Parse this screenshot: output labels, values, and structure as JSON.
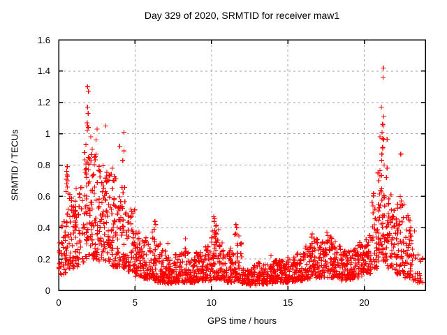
{
  "chart_data": {
    "type": "scatter",
    "title": "Day 329 of 2020, SRMTID for receiver maw1",
    "xlabel": "GPS time / hours",
    "ylabel": "SRMTID / TECUs",
    "xlim": [
      0,
      24
    ],
    "ylim": [
      0,
      1.6
    ],
    "xticks": {
      "values": [
        0,
        5,
        10,
        15,
        20
      ],
      "labels": [
        "0",
        "5",
        "10",
        "15",
        "20"
      ]
    },
    "yticks": {
      "values": [
        0,
        0.2,
        0.4,
        0.6,
        0.8,
        1.0,
        1.2,
        1.4,
        1.6
      ],
      "labels": [
        "0",
        "0.2",
        "0.4",
        "0.6",
        "0.8",
        "1",
        "1.2",
        "1.4",
        "1.6"
      ]
    },
    "grid": true,
    "legend": "none",
    "marker": {
      "shape": "plus",
      "color": "#ff0000",
      "size": 7,
      "stroke_width": 1.2
    },
    "colors": {
      "background": "#ffffff",
      "border": "#000000",
      "grid": "#a0a0a0",
      "text": "#000000"
    },
    "render_seed": 329,
    "series": [
      {
        "name": "SRMTID",
        "band_profile_format": [
          "t_start_hr",
          "t_end_hr",
          "n_points",
          "value_min",
          "value_max",
          "low_bias_exponent"
        ],
        "band_profile": [
          [
            0.0,
            0.5,
            42,
            0.1,
            0.45,
            1.5
          ],
          [
            0.5,
            1.0,
            46,
            0.14,
            0.62,
            1.5
          ],
          [
            1.0,
            1.5,
            46,
            0.15,
            0.68,
            1.4
          ],
          [
            1.5,
            2.0,
            50,
            0.18,
            0.86,
            1.25
          ],
          [
            2.0,
            2.5,
            52,
            0.2,
            0.88,
            1.25
          ],
          [
            2.5,
            3.0,
            50,
            0.18,
            0.8,
            1.3
          ],
          [
            3.0,
            3.5,
            50,
            0.18,
            0.78,
            1.3
          ],
          [
            3.5,
            4.0,
            50,
            0.15,
            0.74,
            1.35
          ],
          [
            4.0,
            4.5,
            48,
            0.14,
            0.66,
            1.4
          ],
          [
            4.5,
            5.0,
            46,
            0.12,
            0.52,
            1.5
          ],
          [
            5.0,
            5.5,
            44,
            0.09,
            0.4,
            1.6
          ],
          [
            5.5,
            6.0,
            44,
            0.07,
            0.34,
            1.6
          ],
          [
            6.0,
            6.5,
            44,
            0.06,
            0.38,
            1.7
          ],
          [
            6.5,
            7.0,
            44,
            0.05,
            0.3,
            1.7
          ],
          [
            7.0,
            7.5,
            44,
            0.04,
            0.22,
            1.6
          ],
          [
            7.5,
            8.0,
            44,
            0.05,
            0.24,
            1.6
          ],
          [
            8.0,
            8.5,
            44,
            0.05,
            0.28,
            1.6
          ],
          [
            8.5,
            9.0,
            44,
            0.05,
            0.22,
            1.5
          ],
          [
            9.0,
            9.5,
            44,
            0.06,
            0.25,
            1.5
          ],
          [
            9.5,
            10.0,
            44,
            0.06,
            0.28,
            1.5
          ],
          [
            10.0,
            10.5,
            48,
            0.07,
            0.42,
            1.6
          ],
          [
            10.5,
            11.0,
            44,
            0.06,
            0.31,
            1.6
          ],
          [
            11.0,
            11.5,
            44,
            0.05,
            0.27,
            1.6
          ],
          [
            11.5,
            12.0,
            44,
            0.06,
            0.36,
            1.7
          ],
          [
            12.0,
            12.5,
            42,
            0.04,
            0.14,
            1.5
          ],
          [
            12.5,
            13.0,
            42,
            0.03,
            0.16,
            1.5
          ],
          [
            13.0,
            13.5,
            42,
            0.04,
            0.18,
            1.5
          ],
          [
            13.5,
            14.0,
            44,
            0.04,
            0.17,
            1.5
          ],
          [
            14.0,
            14.5,
            44,
            0.05,
            0.19,
            1.5
          ],
          [
            14.5,
            15.0,
            44,
            0.05,
            0.19,
            1.5
          ],
          [
            15.0,
            15.5,
            44,
            0.05,
            0.21,
            1.5
          ],
          [
            15.5,
            16.0,
            44,
            0.06,
            0.25,
            1.5
          ],
          [
            16.0,
            16.5,
            44,
            0.07,
            0.29,
            1.5
          ],
          [
            16.5,
            17.0,
            46,
            0.08,
            0.33,
            1.4
          ],
          [
            17.0,
            17.5,
            46,
            0.08,
            0.31,
            1.4
          ],
          [
            17.5,
            18.0,
            46,
            0.08,
            0.34,
            1.4
          ],
          [
            18.0,
            18.5,
            46,
            0.08,
            0.29,
            1.4
          ],
          [
            18.5,
            19.0,
            44,
            0.06,
            0.25,
            1.5
          ],
          [
            19.0,
            19.5,
            44,
            0.07,
            0.27,
            1.5
          ],
          [
            19.5,
            20.0,
            44,
            0.08,
            0.31,
            1.4
          ],
          [
            20.0,
            20.5,
            46,
            0.1,
            0.35,
            1.4
          ],
          [
            20.5,
            21.0,
            48,
            0.14,
            0.62,
            1.4
          ],
          [
            21.0,
            21.5,
            54,
            0.18,
            1.0,
            1.5
          ],
          [
            21.5,
            22.0,
            48,
            0.14,
            0.62,
            1.5
          ],
          [
            22.0,
            22.5,
            46,
            0.1,
            0.56,
            1.5
          ],
          [
            22.5,
            23.0,
            42,
            0.08,
            0.48,
            1.5
          ],
          [
            23.0,
            23.4,
            24,
            0.06,
            0.38,
            1.5
          ],
          [
            23.4,
            23.85,
            14,
            0.05,
            0.25,
            1.4
          ]
        ],
        "outlier_points": [
          [
            1.89,
            1.3
          ],
          [
            1.95,
            1.27
          ],
          [
            1.89,
            1.17
          ],
          [
            1.93,
            1.13
          ],
          [
            1.86,
            1.07
          ],
          [
            1.9,
            1.05
          ],
          [
            1.94,
            1.04
          ],
          [
            1.87,
            1.02
          ],
          [
            2.1,
            0.98
          ],
          [
            2.44,
            0.96
          ],
          [
            1.78,
            0.93
          ],
          [
            2.51,
            1.03
          ],
          [
            3.08,
            1.05
          ],
          [
            3.99,
            0.92
          ],
          [
            4.27,
            1.01
          ],
          [
            4.28,
            0.89
          ],
          [
            4.19,
            0.83
          ],
          [
            1.86,
            0.82
          ],
          [
            1.7,
            0.88
          ],
          [
            2.2,
            0.9
          ],
          [
            0.56,
            0.79
          ],
          [
            0.52,
            0.76
          ],
          [
            0.55,
            0.74
          ],
          [
            0.58,
            0.73
          ],
          [
            0.5,
            0.71
          ],
          [
            0.6,
            0.7
          ],
          [
            0.53,
            0.68
          ],
          [
            0.57,
            0.66
          ],
          [
            0.48,
            0.63
          ],
          [
            0.62,
            0.62
          ],
          [
            6.3,
            0.44
          ],
          [
            6.36,
            0.42
          ],
          [
            6.25,
            0.39
          ],
          [
            8.3,
            0.33
          ],
          [
            7.15,
            0.3
          ],
          [
            10.15,
            0.47
          ],
          [
            10.2,
            0.46
          ],
          [
            10.18,
            0.44
          ],
          [
            10.28,
            0.41
          ],
          [
            10.22,
            0.38
          ],
          [
            10.35,
            0.36
          ],
          [
            11.6,
            0.42
          ],
          [
            11.65,
            0.4
          ],
          [
            11.58,
            0.36
          ],
          [
            13.9,
            0.22
          ],
          [
            15.6,
            0.23
          ],
          [
            16.6,
            0.36
          ],
          [
            16.55,
            0.34
          ],
          [
            17.55,
            0.37
          ],
          [
            17.62,
            0.35
          ],
          [
            18.1,
            0.31
          ],
          [
            21.25,
            1.42
          ],
          [
            21.23,
            1.36
          ],
          [
            21.12,
            1.17
          ],
          [
            21.28,
            1.11
          ],
          [
            21.2,
            1.06
          ],
          [
            21.24,
            1.05
          ],
          [
            21.16,
            1.01
          ],
          [
            21.21,
            0.97
          ],
          [
            21.15,
            0.87
          ],
          [
            21.14,
            0.83
          ],
          [
            21.3,
            0.8
          ],
          [
            20.9,
            0.75
          ],
          [
            20.95,
            0.7
          ],
          [
            21.5,
            0.78
          ],
          [
            21.45,
            0.72
          ],
          [
            22.39,
            0.87
          ],
          [
            22.35,
            0.6
          ],
          [
            22.42,
            0.57
          ],
          [
            22.6,
            0.55
          ],
          [
            23.05,
            0.4
          ],
          [
            22.9,
            0.45
          ]
        ]
      }
    ]
  }
}
